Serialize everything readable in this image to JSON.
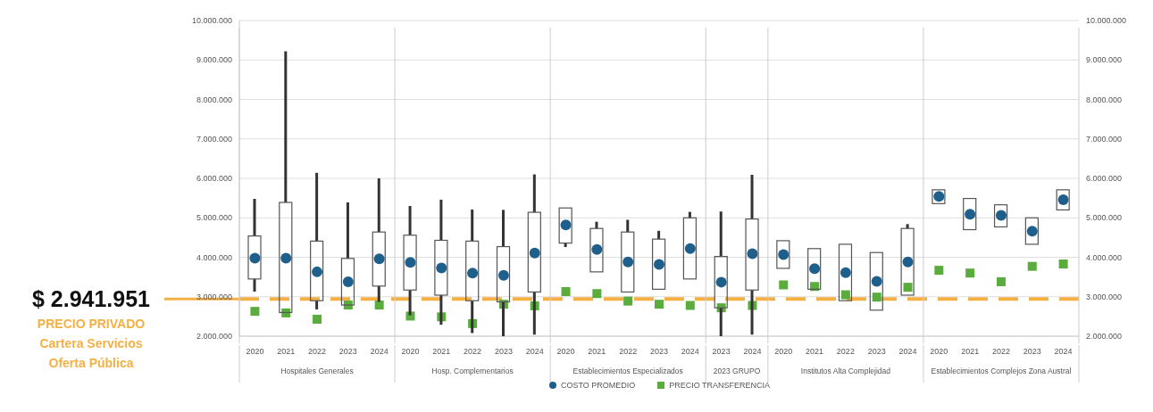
{
  "chart_data": {
    "type": "candlestick",
    "categories": [
      "2020",
      "2021",
      "2022",
      "2023",
      "2024",
      "2020",
      "2021",
      "2022",
      "2023",
      "2024",
      "2020",
      "2021",
      "2022",
      "2023",
      "2024",
      "2023",
      "2024",
      "2020",
      "2021",
      "2022",
      "2023",
      "2024",
      "2020",
      "2021",
      "2022",
      "2023",
      "2024"
    ],
    "ohlc": [
      [
        3450000,
        5480000,
        3130000,
        4540000
      ],
      [
        2600000,
        9220000,
        2600000,
        5390000
      ],
      [
        2900000,
        6140000,
        2680000,
        4410000
      ],
      [
        2790000,
        5390000,
        2790000,
        3970000
      ],
      [
        3270000,
        6000000,
        2870000,
        4640000
      ],
      [
        3170000,
        5300000,
        2530000,
        4560000
      ],
      [
        3040000,
        5460000,
        2290000,
        4430000
      ],
      [
        2900000,
        5210000,
        2080000,
        4410000
      ],
      [
        2870000,
        5200000,
        2000000,
        4270000
      ],
      [
        3120000,
        6100000,
        2040000,
        5140000
      ],
      [
        4360000,
        5250000,
        4260000,
        5250000
      ],
      [
        3630000,
        4900000,
        3630000,
        4730000
      ],
      [
        3120000,
        4950000,
        3120000,
        4640000
      ],
      [
        3190000,
        4670000,
        3190000,
        4460000
      ],
      [
        3450000,
        5150000,
        3450000,
        5000000
      ],
      [
        2720000,
        5160000,
        2000000,
        4020000
      ],
      [
        3170000,
        6090000,
        2040000,
        4970000
      ],
      [
        3720000,
        4420000,
        3720000,
        4420000
      ],
      [
        3190000,
        4220000,
        3190000,
        4220000
      ],
      [
        2900000,
        4330000,
        2900000,
        4330000
      ],
      [
        2660000,
        4120000,
        2660000,
        4120000
      ],
      [
        3040000,
        4840000,
        3040000,
        4730000
      ],
      [
        5360000,
        5710000,
        5360000,
        5710000
      ],
      [
        4700000,
        5490000,
        4700000,
        5490000
      ],
      [
        4770000,
        5330000,
        4770000,
        5330000
      ],
      [
        4330000,
        5000000,
        4330000,
        5000000
      ],
      [
        5200000,
        5710000,
        5200000,
        5710000
      ]
    ],
    "series": [
      {
        "name": "COSTO PROMEDIO",
        "type": "scatter",
        "marker": "circle",
        "color": "#1f5f8b",
        "values": [
          3980000,
          3980000,
          3630000,
          3380000,
          3960000,
          3870000,
          3730000,
          3600000,
          3540000,
          4110000,
          4820000,
          4200000,
          3880000,
          3820000,
          4220000,
          3370000,
          4090000,
          4070000,
          3710000,
          3610000,
          3390000,
          3880000,
          5540000,
          5090000,
          5060000,
          4660000,
          5460000
        ]
      },
      {
        "name": "PRECIO TRANSFERENCIA",
        "type": "scatter",
        "marker": "square",
        "color": "#5aad3c",
        "values": [
          2630000,
          2590000,
          2430000,
          2790000,
          2790000,
          2510000,
          2490000,
          2320000,
          2810000,
          2770000,
          3130000,
          3080000,
          2890000,
          2810000,
          2780000,
          2720000,
          2780000,
          3300000,
          3260000,
          3050000,
          2990000,
          3240000,
          3670000,
          3600000,
          3380000,
          3770000,
          3830000
        ]
      }
    ],
    "ylim": [
      2000000,
      10000000
    ],
    "yticks": [
      {
        "value": 2000000,
        "label": "2.000.000"
      },
      {
        "value": 3000000,
        "label": "3.000.000"
      },
      {
        "value": 4000000,
        "label": "4.000.000"
      },
      {
        "value": 5000000,
        "label": "5.000.000"
      },
      {
        "value": 6000000,
        "label": "6.000.000"
      },
      {
        "value": 7000000,
        "label": "7.000.000"
      },
      {
        "value": 8000000,
        "label": "8.000.000"
      },
      {
        "value": 9000000,
        "label": "9.000.000"
      },
      {
        "value": 10000000,
        "label": "10.000.000"
      }
    ],
    "y2lim": [
      2000000,
      10000000
    ],
    "y2ticks": [
      {
        "value": 2000000,
        "label": "2.000.000"
      },
      {
        "value": 3000000,
        "label": "3.000.000"
      },
      {
        "value": 4000000,
        "label": "4.000.000"
      },
      {
        "value": 5000000,
        "label": "5.000.000"
      },
      {
        "value": 6000000,
        "label": "6.000.000"
      },
      {
        "value": 7000000,
        "label": "7.000.000"
      },
      {
        "value": 8000000,
        "label": "8.000.000"
      },
      {
        "value": 9000000,
        "label": "9.000.000"
      },
      {
        "value": 10000000,
        "label": "10.000.000"
      }
    ],
    "grid": "y",
    "legend": "bottom",
    "ref_lines": [
      {
        "axis": "y",
        "value": 2941951,
        "label": "$ 2.941.951",
        "color": "#f5b044",
        "line_style": "dashed"
      }
    ],
    "annotations": [
      "Hospitales Generales",
      "Hosp. Complementarios",
      "Establecimientos Especializados",
      "2023 GRUPO",
      "Institutos Alta Complejidad",
      "Establecimientos Complejos Zona Austral",
      "PRECIO PRIVADO",
      "Cartera Servicios",
      "Oferta Pública"
    ]
  }
}
